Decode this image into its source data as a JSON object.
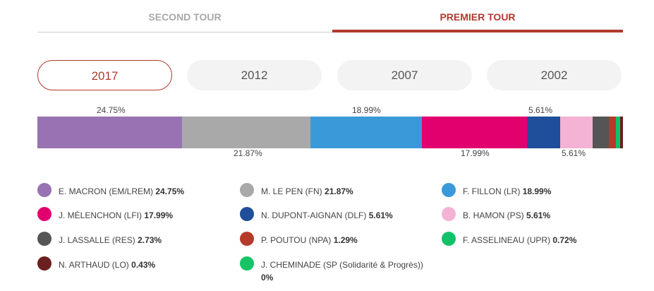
{
  "tabs": [
    {
      "label": "SECOND TOUR",
      "active": false
    },
    {
      "label": "PREMIER TOUR",
      "active": true
    }
  ],
  "years": [
    {
      "label": "2017",
      "selected": true
    },
    {
      "label": "2012",
      "selected": false
    },
    {
      "label": "2007",
      "selected": false
    },
    {
      "label": "2002",
      "selected": false
    }
  ],
  "bar_labels": {
    "macron": "24.75%",
    "lepen": "21.87%",
    "fillon": "18.99%",
    "melenchon": "17.99%",
    "dupont": "5.61%",
    "hamon": "5.61%"
  },
  "candidates": [
    {
      "name": "E. MACRON (EM/LREM)",
      "pct": "24.75%",
      "color": "#9872b3",
      "value": 24.75
    },
    {
      "name": "M. LE PEN (FN)",
      "pct": "21.87%",
      "color": "#a9a9a9",
      "value": 21.87
    },
    {
      "name": "F. FILLON (LR)",
      "pct": "18.99%",
      "color": "#3a9ad9",
      "value": 18.99
    },
    {
      "name": "J. MÉLENCHON (LFI)",
      "pct": "17.99%",
      "color": "#e2006e",
      "value": 17.99
    },
    {
      "name": "N. DUPONT-AIGNAN (DLF)",
      "pct": "5.61%",
      "color": "#1f4e9a",
      "value": 5.61
    },
    {
      "name": "B. HAMON (PS)",
      "pct": "5.61%",
      "color": "#f4b3d4",
      "value": 5.61
    },
    {
      "name": "J. LASSALLE (RES)",
      "pct": "2.73%",
      "color": "#555555",
      "value": 2.73
    },
    {
      "name": "P. POUTOU (NPA)",
      "pct": "1.29%",
      "color": "#b63a2c",
      "value": 1.29
    },
    {
      "name": "F. ASSELINEAU (UPR)",
      "pct": "0.72%",
      "color": "#12c26a",
      "value": 0.72
    },
    {
      "name": "N. ARTHAUD (LO)",
      "pct": "0.43%",
      "color": "#6b1f1f",
      "value": 0.43
    },
    {
      "name": "J. CHEMINADE (SP (Solidarité & Progrès))",
      "pct": "0%",
      "color": "#16c465",
      "value": 0
    }
  ]
}
